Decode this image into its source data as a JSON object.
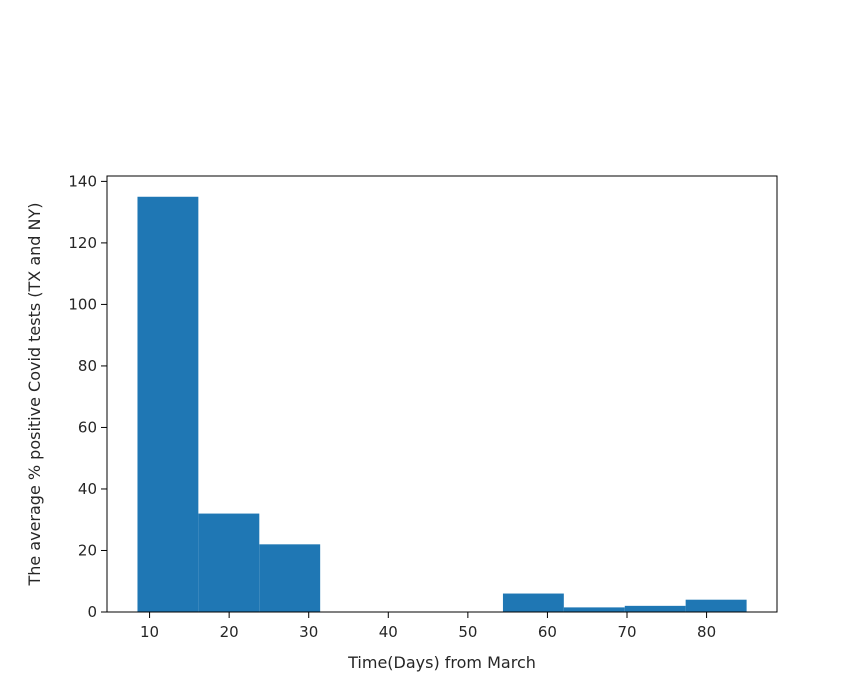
{
  "chart_data": {
    "type": "bar",
    "title": "",
    "xlabel": "Time(Days) from March",
    "ylabel": "The average % positive Covid tests (TX and NY)",
    "xlim": [
      4.65,
      88.85
    ],
    "ylim": [
      0,
      141.75
    ],
    "xticks": [
      10,
      20,
      30,
      40,
      50,
      60,
      70,
      80
    ],
    "yticks": [
      0,
      20,
      40,
      60,
      80,
      100,
      120,
      140
    ],
    "grid": false,
    "legend": null,
    "bar_color": "#1f77b4",
    "bins": [
      {
        "x0": 8.48,
        "x1": 16.13,
        "value": 135
      },
      {
        "x0": 16.13,
        "x1": 23.79,
        "value": 32
      },
      {
        "x0": 23.79,
        "x1": 31.44,
        "value": 22
      },
      {
        "x0": 31.44,
        "x1": 39.1,
        "value": 0
      },
      {
        "x0": 39.1,
        "x1": 46.75,
        "value": 0
      },
      {
        "x0": 46.75,
        "x1": 54.41,
        "value": 0
      },
      {
        "x0": 54.41,
        "x1": 62.06,
        "value": 6
      },
      {
        "x0": 62.06,
        "x1": 69.72,
        "value": 1.5
      },
      {
        "x0": 69.72,
        "x1": 77.37,
        "value": 2
      },
      {
        "x0": 77.37,
        "x1": 85.03,
        "value": 4
      }
    ]
  }
}
